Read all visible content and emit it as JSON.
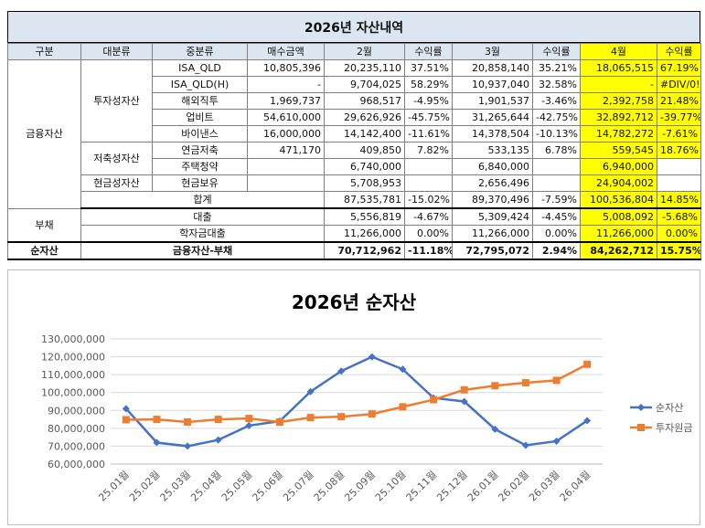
{
  "sheet": {
    "title": "2026년 자산내역",
    "headers": [
      "구분",
      "대분류",
      "중분류",
      "매수금액",
      "2월",
      "수익률",
      "3월",
      "수익률",
      "4월",
      "수익률"
    ],
    "groups": {
      "financial": "금융자산",
      "growth": "투자성자산",
      "savings": "저축성자산",
      "cash": "현금성자산",
      "debt": "부채",
      "net": "순자산"
    },
    "rows": [
      {
        "name": "ISA_QLD",
        "buy": "10,805,396",
        "feb": "20,235,110",
        "feb_r": "37.51%",
        "mar": "20,858,140",
        "mar_r": "35.21%",
        "apr": "18,065,515",
        "apr_r": "67.19%"
      },
      {
        "name": "ISA_QLD(H)",
        "buy": "-",
        "feb": "9,704,025",
        "feb_r": "58.29%",
        "mar": "10,937,040",
        "mar_r": "32.58%",
        "apr": "-",
        "apr_r": "#DIV/0!"
      },
      {
        "name": "해외직투",
        "buy": "1,969,737",
        "feb": "968,517",
        "feb_r": "-4.95%",
        "mar": "1,901,537",
        "mar_r": "-3.46%",
        "apr": "2,392,758",
        "apr_r": "21.48%"
      },
      {
        "name": "업비트",
        "buy": "54,610,000",
        "feb": "29,626,926",
        "feb_r": "-45.75%",
        "mar": "31,265,644",
        "mar_r": "-42.75%",
        "apr": "32,892,712",
        "apr_r": "-39.77%"
      },
      {
        "name": "바이낸스",
        "buy": "16,000,000",
        "feb": "14,142,400",
        "feb_r": "-11.61%",
        "mar": "14,378,504",
        "mar_r": "-10.13%",
        "apr": "14,782,272",
        "apr_r": "-7.61%"
      },
      {
        "name": "연금저축",
        "buy": "471,170",
        "feb": "409,850",
        "feb_r": "7.82%",
        "mar": "533,135",
        "mar_r": "6.78%",
        "apr": "559,545",
        "apr_r": "18.76%"
      },
      {
        "name": "주택청약",
        "buy": "",
        "feb": "6,740,000",
        "feb_r": "",
        "mar": "6,840,000",
        "mar_r": "",
        "apr": "6,940,000",
        "apr_r": ""
      },
      {
        "name": "현금보유",
        "buy": "",
        "feb": "5,708,953",
        "feb_r": "",
        "mar": "2,656,496",
        "mar_r": "",
        "apr": "24,904,002",
        "apr_r": ""
      }
    ],
    "total": {
      "label": "합계",
      "feb": "87,535,781",
      "feb_r": "-15.02%",
      "mar": "89,370,496",
      "mar_r": "-7.59%",
      "apr": "100,536,804",
      "apr_r": "14.85%"
    },
    "debts": [
      {
        "name": "대출",
        "feb": "5,556,819",
        "feb_r": "-4.67%",
        "mar": "5,309,424",
        "mar_r": "-4.45%",
        "apr": "5,008,092",
        "apr_r": "-5.68%"
      },
      {
        "name": "학자금대출",
        "feb": "11,266,000",
        "feb_r": "0.00%",
        "mar": "11,266,000",
        "mar_r": "0.00%",
        "apr": "11,266,000",
        "apr_r": "0.00%"
      }
    ],
    "net": {
      "label": "금융자산-부채",
      "feb": "70,712,962",
      "feb_r": "-11.18%",
      "mar": "72,795,072",
      "mar_r": "2.94%",
      "apr": "84,262,712",
      "apr_r": "15.75%"
    }
  },
  "chart_data": {
    "type": "line",
    "title": "2026년 순자산",
    "categories": [
      "25.01월",
      "25.02월",
      "25.03월",
      "25.04월",
      "25.05월",
      "25.06월",
      "25.07월",
      "25.08월",
      "25.09월",
      "25.10월",
      "25.11월",
      "25.12월",
      "26.01월",
      "26.02월",
      "26.03월",
      "26.04월"
    ],
    "series": [
      {
        "name": "순자산",
        "color": "#4472c4",
        "values": [
          91000000,
          72000000,
          70000000,
          73500000,
          81500000,
          84000000,
          100500000,
          112000000,
          120000000,
          113000000,
          97000000,
          95000000,
          79500000,
          70500000,
          72800000,
          84300000
        ]
      },
      {
        "name": "투자원금",
        "color": "#ed7d31",
        "values": [
          84800000,
          85000000,
          83500000,
          85000000,
          85500000,
          83500000,
          86000000,
          86500000,
          88000000,
          92000000,
          96000000,
          101500000,
          103800000,
          105500000,
          106800000,
          115800000
        ]
      }
    ],
    "ylim": [
      60000000,
      130000000
    ],
    "yticks": [
      "60,000,000",
      "70,000,000",
      "80,000,000",
      "90,000,000",
      "100,000,000",
      "110,000,000",
      "120,000,000",
      "130,000,000"
    ],
    "grid": true,
    "legend": "right"
  }
}
